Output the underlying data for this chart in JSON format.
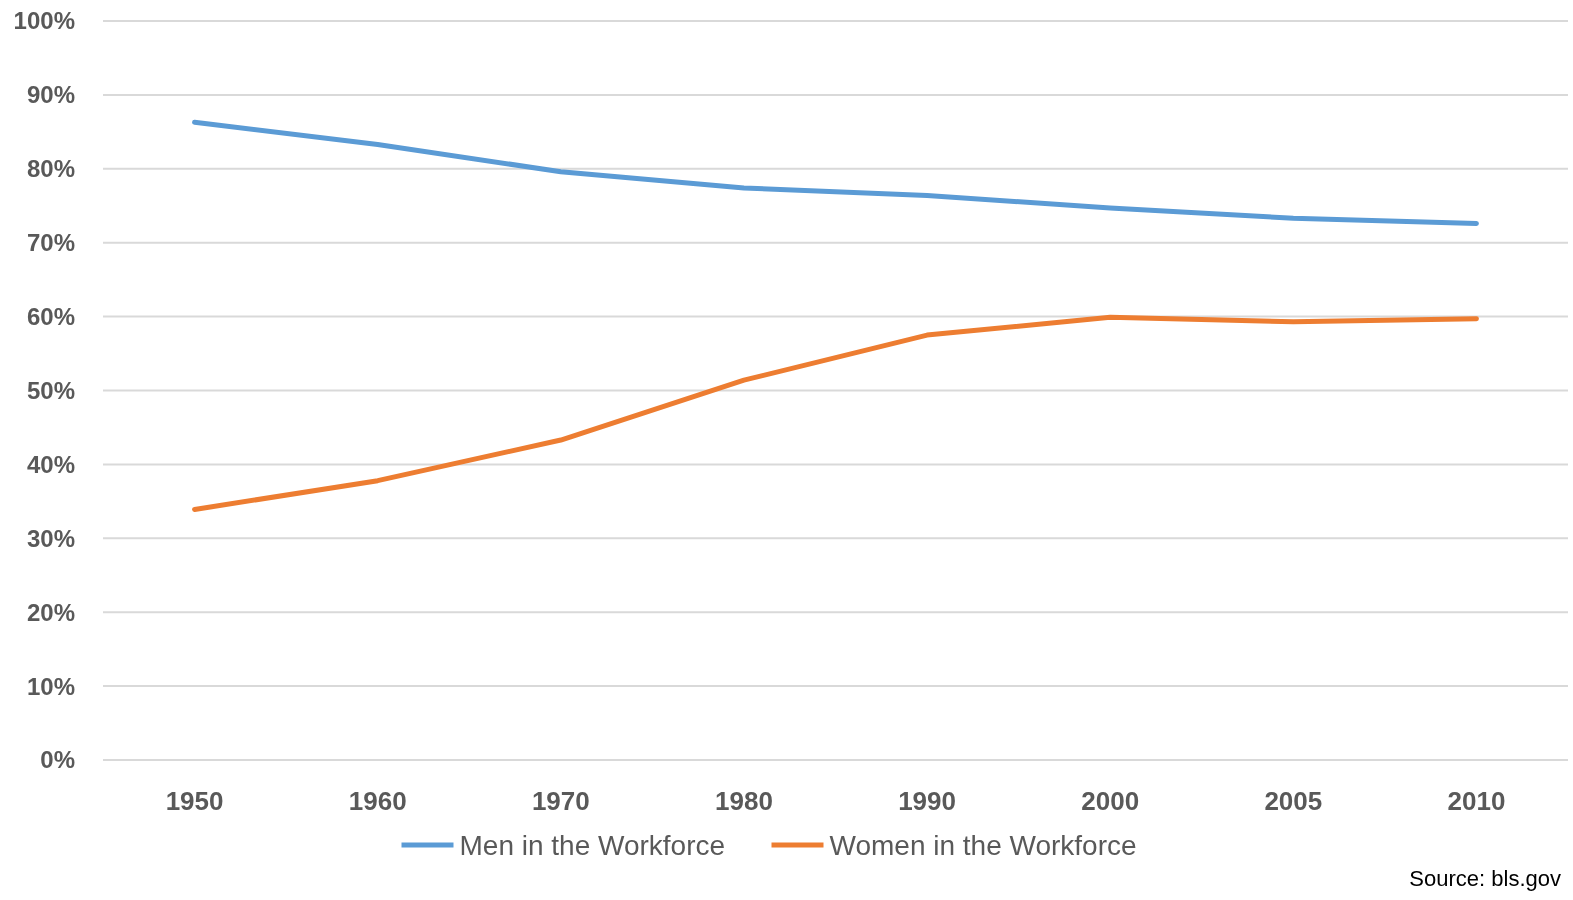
{
  "chart_data": {
    "type": "line",
    "categories": [
      "1950",
      "1960",
      "1970",
      "1980",
      "1990",
      "2000",
      "2005",
      "2010"
    ],
    "series": [
      {
        "name": "Men in the Workforce",
        "color": "#5b9bd5",
        "values": [
          86.3,
          83.3,
          79.6,
          77.4,
          76.4,
          74.7,
          73.3,
          72.6
        ]
      },
      {
        "name": "Women in the Workforce",
        "color": "#ed7d31",
        "values": [
          33.9,
          37.8,
          43.3,
          51.4,
          57.5,
          59.9,
          59.3,
          59.7
        ]
      }
    ],
    "ylim": [
      0,
      100
    ],
    "yticks": [
      {
        "value": 0,
        "label": "0%"
      },
      {
        "value": 10,
        "label": "10%"
      },
      {
        "value": 20,
        "label": "20%"
      },
      {
        "value": 30,
        "label": "30%"
      },
      {
        "value": 40,
        "label": "40%"
      },
      {
        "value": 50,
        "label": "50%"
      },
      {
        "value": 60,
        "label": "60%"
      },
      {
        "value": 70,
        "label": "70%"
      },
      {
        "value": 80,
        "label": "80%"
      },
      {
        "value": 90,
        "label": "90%"
      },
      {
        "value": 100,
        "label": "100%"
      }
    ],
    "grid": "y",
    "legend": "bottom",
    "marker": "none",
    "line_style": "solid",
    "annotations": [
      "Source: bls.gov"
    ]
  }
}
